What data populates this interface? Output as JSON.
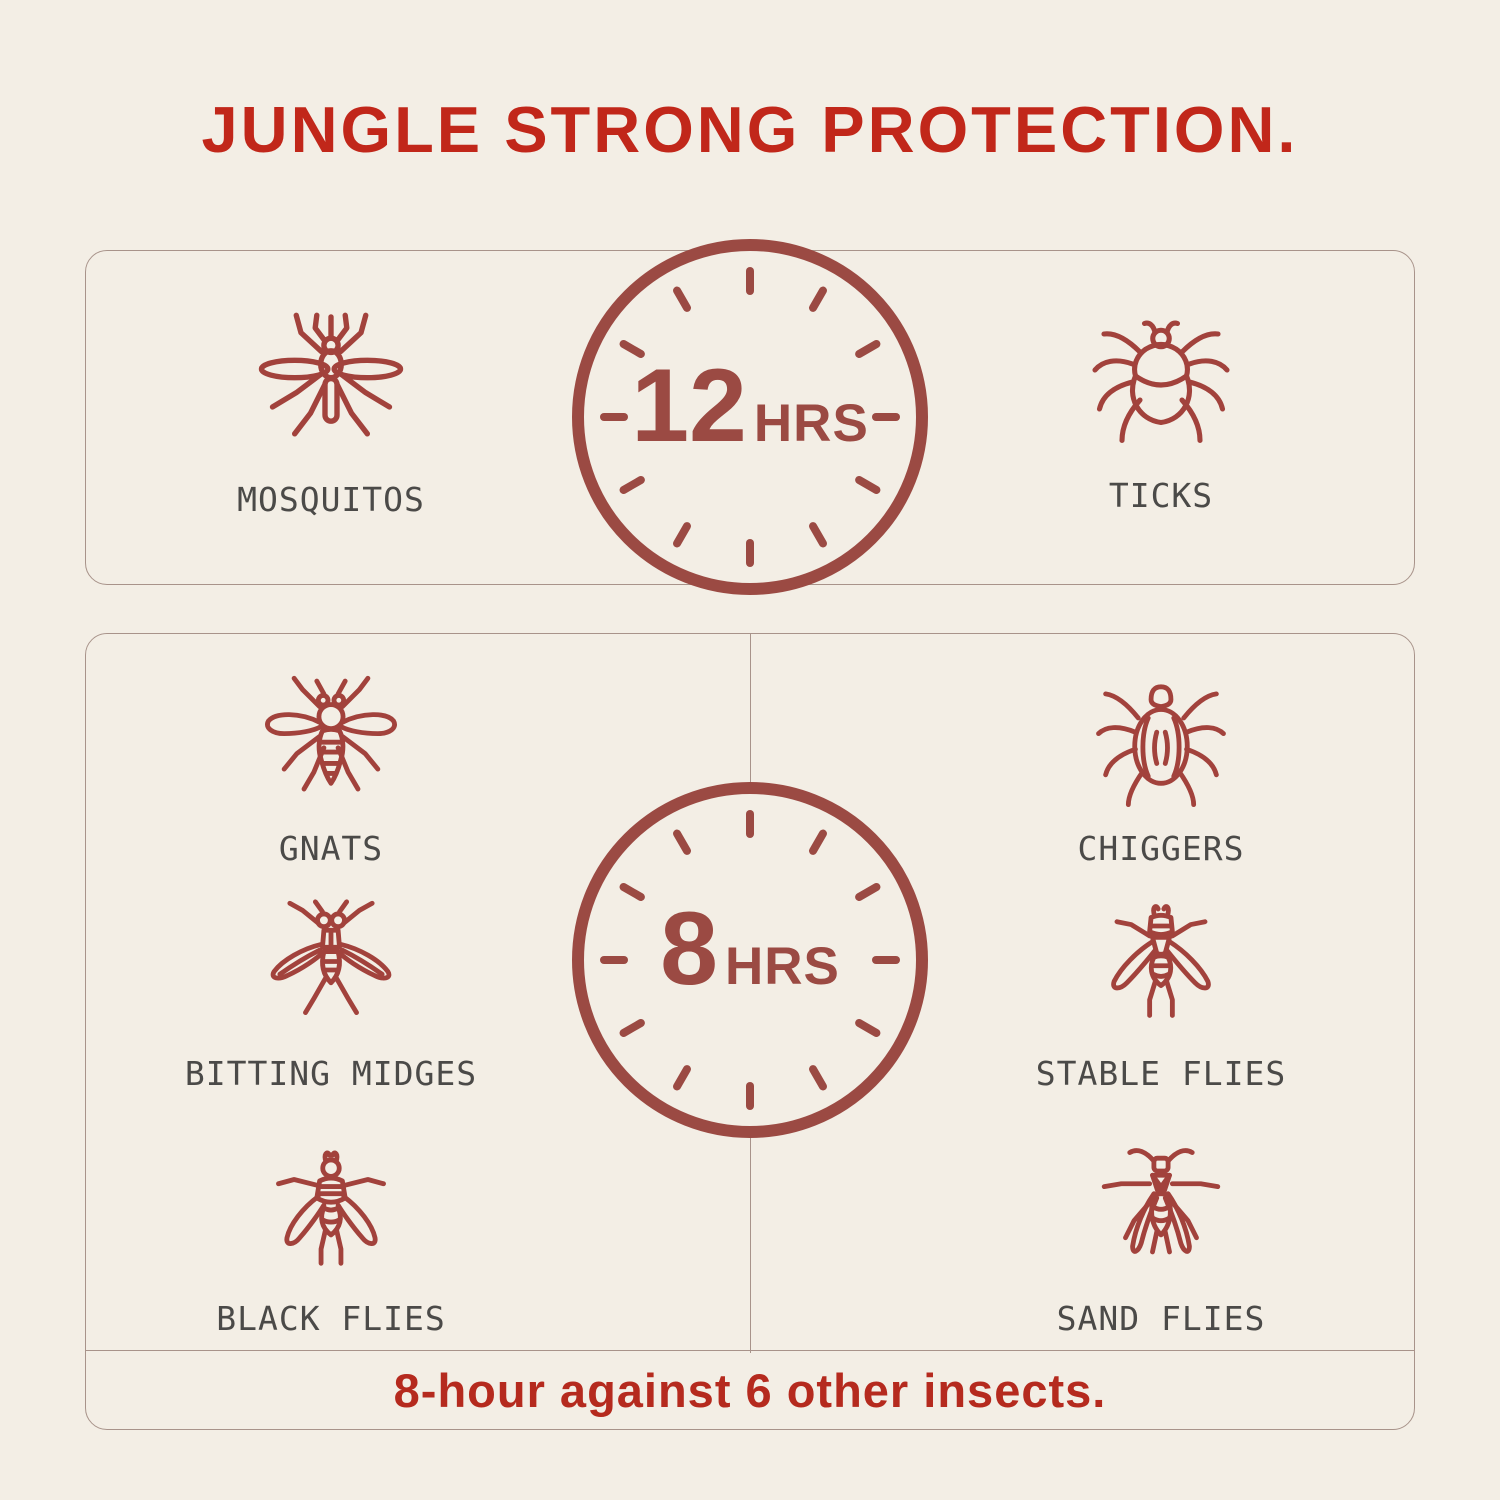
{
  "title": "JUNGLE STRONG PROTECTION.",
  "panel_12hrs": {
    "clock": {
      "value": "12",
      "unit": "HRS"
    },
    "items": [
      {
        "label": "MOSQUITOS",
        "icon": "mosquito-icon"
      },
      {
        "label": "TICKS",
        "icon": "tick-icon"
      }
    ]
  },
  "panel_8hrs": {
    "clock": {
      "value": "8",
      "unit": "HRS"
    },
    "left_items": [
      {
        "label": "GNATS",
        "icon": "gnat-icon"
      },
      {
        "label": "BITTING MIDGES",
        "icon": "biting-midge-icon"
      },
      {
        "label": "BLACK FLIES",
        "icon": "black-fly-icon"
      }
    ],
    "right_items": [
      {
        "label": "CHIGGERS",
        "icon": "chigger-icon"
      },
      {
        "label": "STABLE FLIES",
        "icon": "stable-fly-icon"
      },
      {
        "label": "SAND FLIES",
        "icon": "sand-fly-icon"
      }
    ],
    "footer": "8-hour against 6 other insects."
  },
  "colors": {
    "background": "#f3eee5",
    "title_red": "#c1271a",
    "footer_red": "#b52a1e",
    "icon_red": "#a2423c",
    "clock_maroon": "#9b4a43",
    "label_gray": "#4b4a48",
    "panel_border": "#a8938a"
  }
}
